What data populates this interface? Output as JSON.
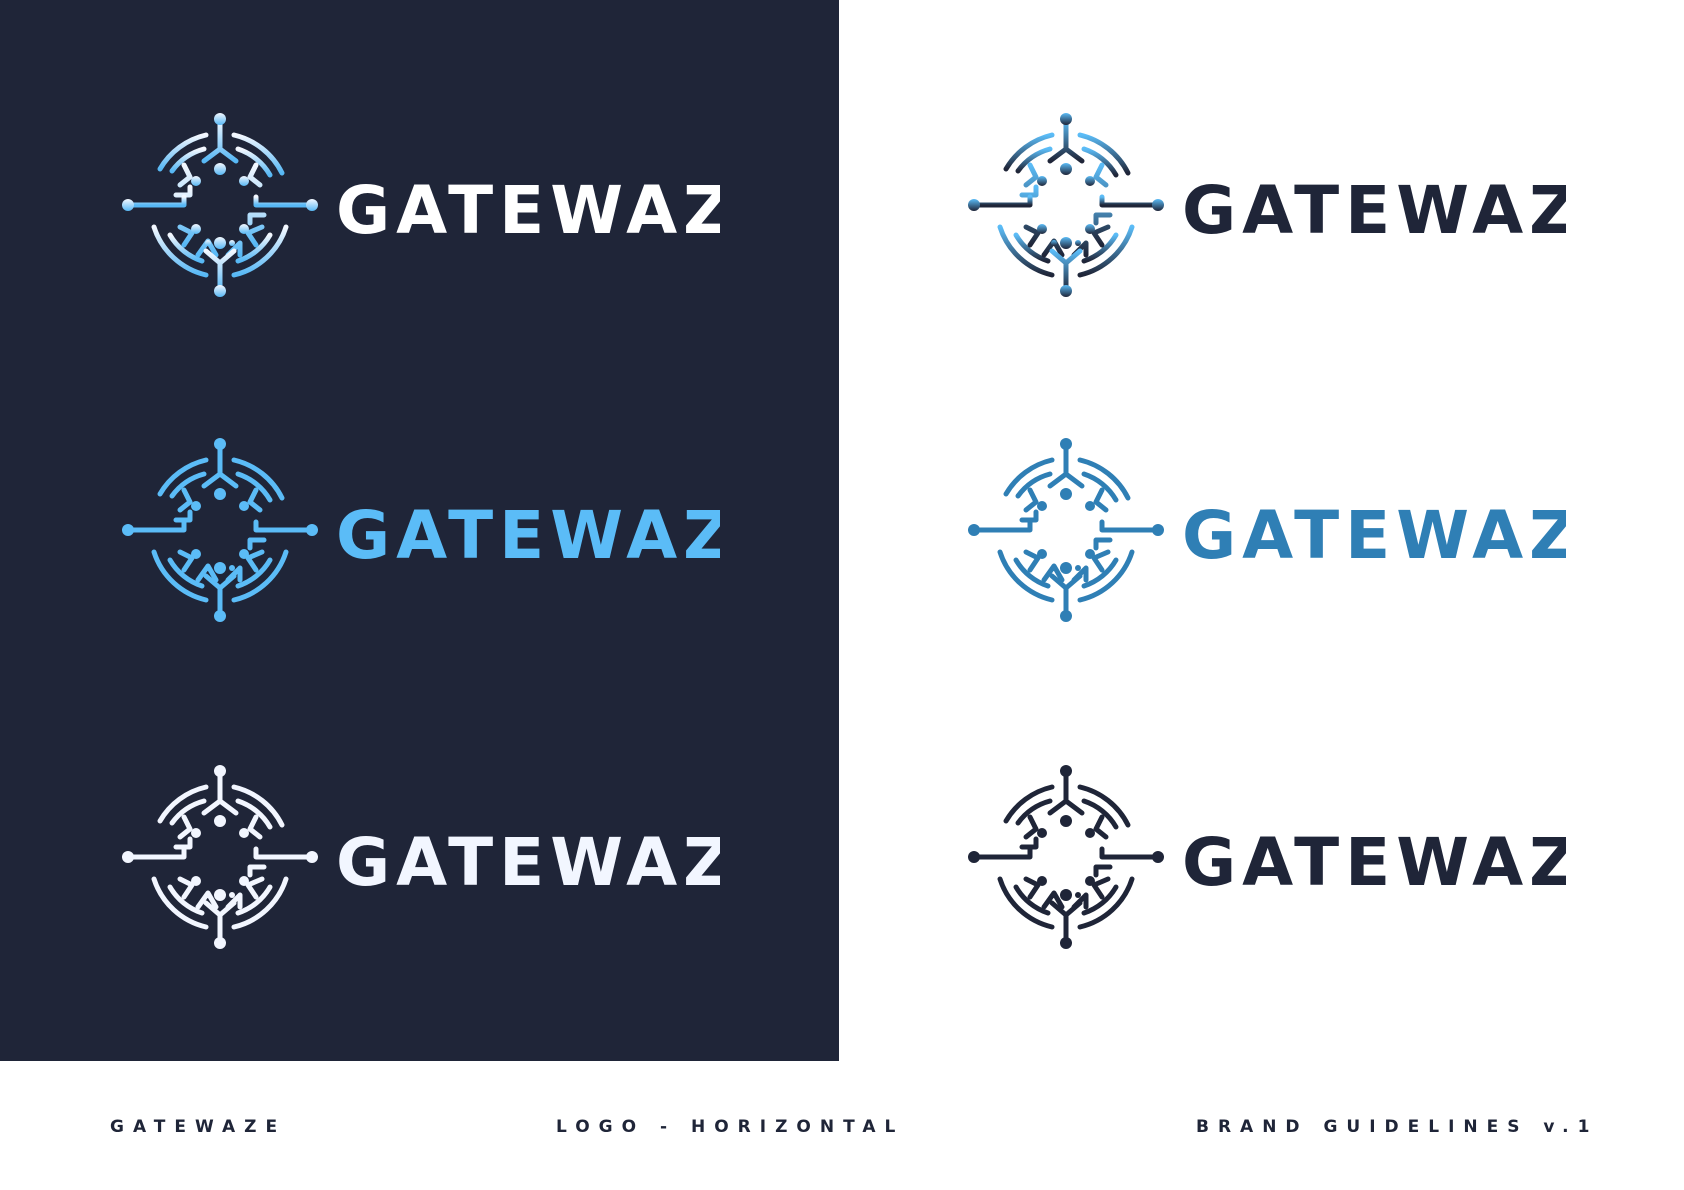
{
  "brand": {
    "wordmark": "GATEWAZE"
  },
  "logos": [
    {
      "panel": "dark",
      "variant": "gradient",
      "mark_colors": [
        "#f4f8ff",
        "#57b8f5"
      ],
      "text_color": "#ffffff"
    },
    {
      "panel": "dark",
      "variant": "light-blue",
      "mark_colors": [
        "#5bbcf7",
        "#5bbcf7"
      ],
      "text_color": "#5bbcf7"
    },
    {
      "panel": "dark",
      "variant": "white",
      "mark_colors": [
        "#f2f6ff",
        "#f2f6ff"
      ],
      "text_color": "#f2f6ff"
    },
    {
      "panel": "light",
      "variant": "gradient",
      "mark_colors": [
        "#5bbcf7",
        "#1f2538"
      ],
      "text_color": "#1f2538"
    },
    {
      "panel": "light",
      "variant": "mid-blue",
      "mark_colors": [
        "#2f7fb5",
        "#2f7fb5"
      ],
      "text_color": "#2f7fb5"
    },
    {
      "panel": "light",
      "variant": "navy",
      "mark_colors": [
        "#1f2538",
        "#1f2538"
      ],
      "text_color": "#1f2538"
    }
  ],
  "colors": {
    "navy": "#1f2538",
    "white": "#ffffff",
    "light_blue": "#5bbcf7",
    "mid_blue": "#2f7fb5"
  },
  "footer": {
    "left": "GATEWAZE",
    "center": "LOGO - HORIZONTAL",
    "right": "BRAND GUIDELINES v.1"
  }
}
